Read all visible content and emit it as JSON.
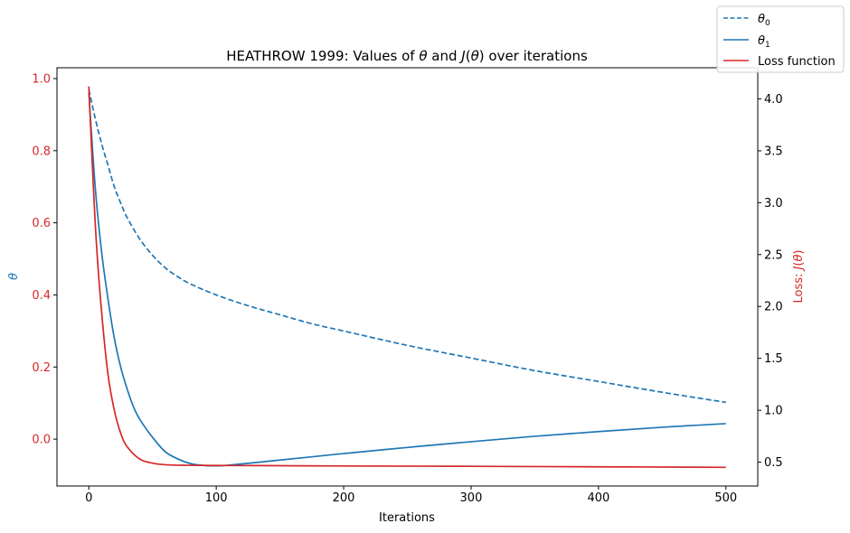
{
  "chart_data": {
    "type": "line",
    "title": {
      "prefix": "HEATHROW 1999: Values of ",
      "theta": "θ",
      "mid": " and ",
      "J": "J",
      "open": "(",
      "close": ")",
      "suffix": " over iterations"
    },
    "xlabel": "Iterations",
    "ylabel_left": "θ",
    "ylabel_right": {
      "prefix": "Loss: ",
      "J": "J",
      "open": "(",
      "theta": "θ",
      "close": ")"
    },
    "xlim": [
      -25,
      525
    ],
    "ylim_left": [
      -0.13,
      1.03
    ],
    "ylim_right": [
      0.27,
      4.3
    ],
    "x_ticks": [
      0,
      100,
      200,
      300,
      400,
      500
    ],
    "x_tick_labels": [
      "0",
      "100",
      "200",
      "300",
      "400",
      "500"
    ],
    "y_left_ticks": [
      0.0,
      0.2,
      0.4,
      0.6,
      0.8,
      1.0
    ],
    "y_left_tick_labels": [
      "0.0",
      "0.2",
      "0.4",
      "0.6",
      "0.8",
      "1.0"
    ],
    "y_right_ticks": [
      0.5,
      1.0,
      1.5,
      2.0,
      2.5,
      3.0,
      3.5,
      4.0
    ],
    "y_right_tick_labels": [
      "0.5",
      "1.0",
      "1.5",
      "2.0",
      "2.5",
      "3.0",
      "3.5",
      "4.0"
    ],
    "colors": {
      "theta": "#1f77b4",
      "loss": "#d62728",
      "axis": "#000000"
    },
    "series": [
      {
        "name": "θ₀",
        "axis": "left",
        "style": "dashed",
        "color": "#1f77b4",
        "x": [
          0,
          5,
          10,
          15,
          20,
          25,
          30,
          40,
          50,
          60,
          70,
          80,
          100,
          125,
          150,
          175,
          200,
          250,
          300,
          350,
          400,
          450,
          500
        ],
        "y": [
          0.97,
          0.89,
          0.82,
          0.76,
          0.7,
          0.655,
          0.615,
          0.555,
          0.51,
          0.475,
          0.45,
          0.43,
          0.4,
          0.37,
          0.345,
          0.32,
          0.3,
          0.26,
          0.225,
          0.19,
          0.16,
          0.13,
          0.102
        ]
      },
      {
        "name": "θ₁",
        "axis": "left",
        "style": "solid",
        "color": "#1f77b4",
        "x": [
          0,
          5,
          10,
          15,
          20,
          25,
          30,
          35,
          40,
          50,
          60,
          70,
          80,
          90,
          100,
          110,
          125,
          150,
          175,
          200,
          250,
          300,
          350,
          400,
          450,
          500
        ],
        "y": [
          0.96,
          0.7,
          0.52,
          0.39,
          0.28,
          0.2,
          0.14,
          0.09,
          0.055,
          0.005,
          -0.035,
          -0.055,
          -0.068,
          -0.073,
          -0.074,
          -0.072,
          -0.067,
          -0.058,
          -0.049,
          -0.04,
          -0.023,
          -0.007,
          0.008,
          0.021,
          0.033,
          0.043
        ]
      },
      {
        "name": "Loss function",
        "axis": "right",
        "style": "solid",
        "color": "#d62728",
        "x": [
          0,
          3,
          6,
          10,
          15,
          20,
          25,
          30,
          40,
          50,
          60,
          75,
          100,
          150,
          200,
          300,
          400,
          500
        ],
        "y": [
          4.12,
          3.3,
          2.6,
          1.95,
          1.35,
          1.0,
          0.78,
          0.65,
          0.53,
          0.49,
          0.475,
          0.47,
          0.468,
          0.466,
          0.463,
          0.46,
          0.455,
          0.45
        ]
      }
    ],
    "legend": {
      "placement": "top-right",
      "entries": [
        {
          "symbol": "θ",
          "sub": "0"
        },
        {
          "symbol": "θ",
          "sub": "1"
        },
        {
          "text": "Loss function"
        }
      ]
    }
  }
}
